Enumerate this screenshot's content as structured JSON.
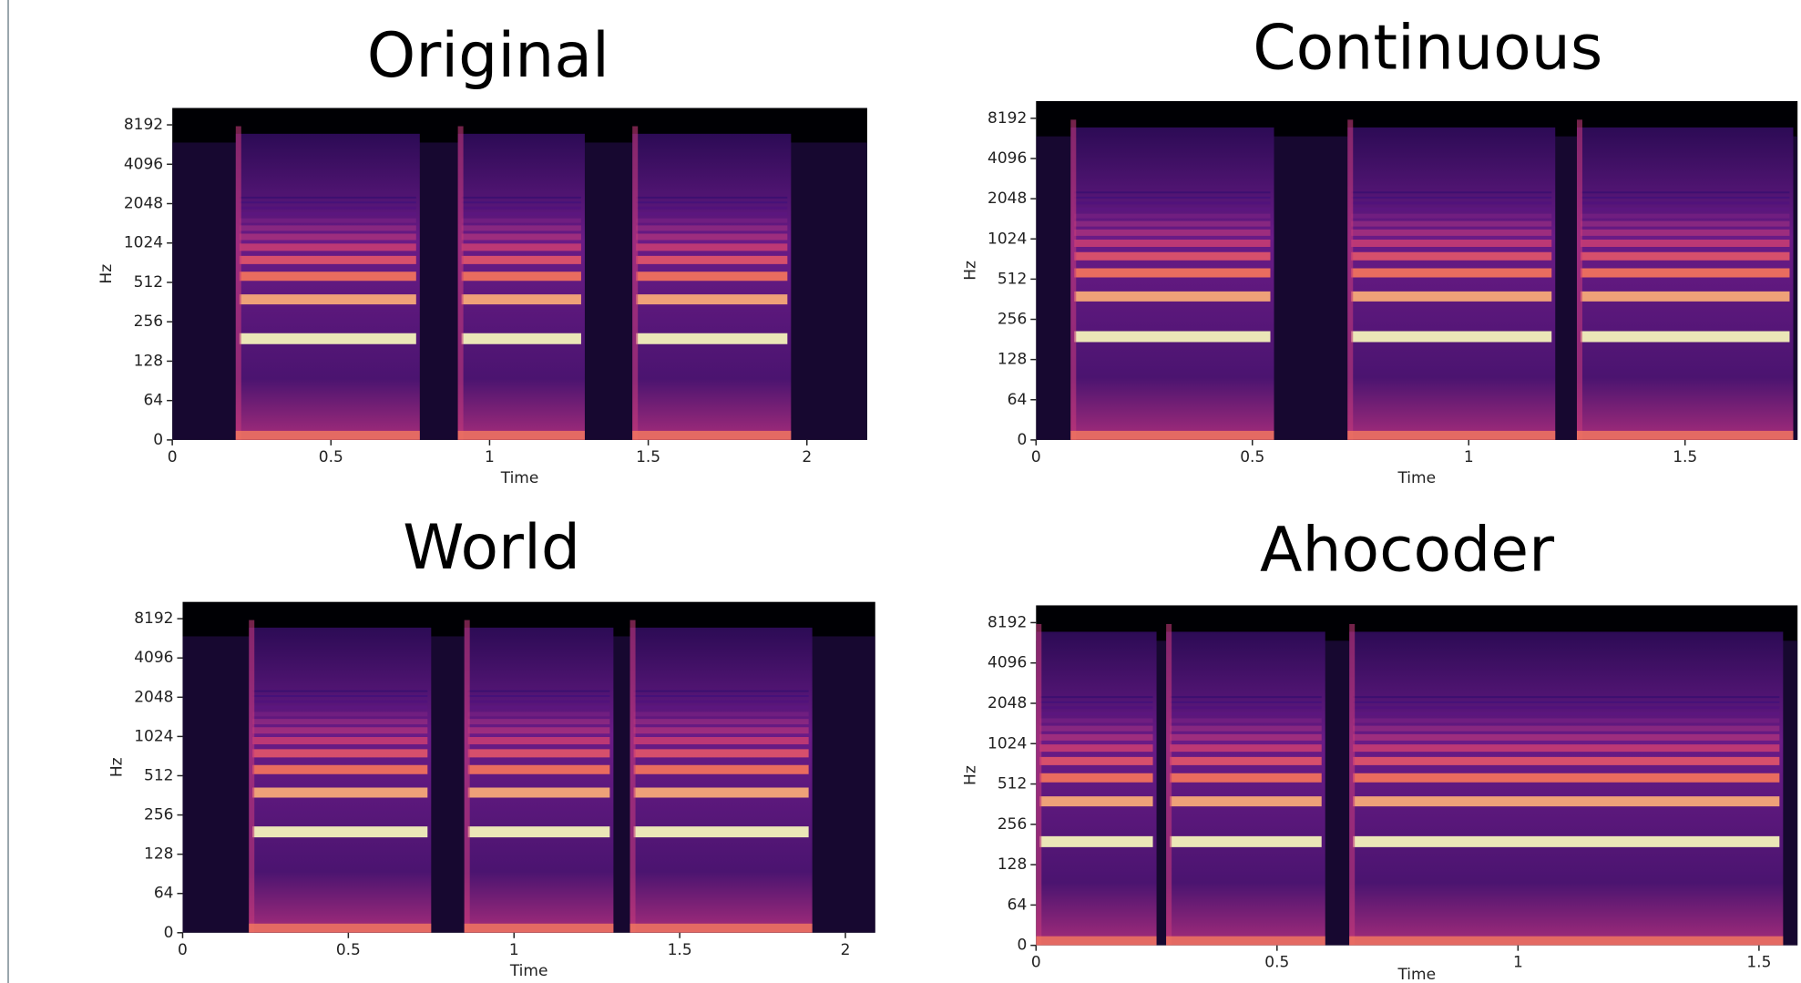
{
  "chart_data": [
    {
      "type": "spectrogram",
      "title": "Original",
      "xlabel": "Time",
      "ylabel": "Hz",
      "yscale": "symlog",
      "linthresh": 64,
      "xlim": [
        0,
        2.19
      ],
      "xticks": [
        0,
        0.5,
        1,
        1.5,
        2
      ],
      "ylim": [
        0,
        11025
      ],
      "yticks": [
        0,
        64,
        128,
        256,
        512,
        1024,
        2048,
        4096,
        8192
      ]
    },
    {
      "type": "spectrogram",
      "title": "Continuous",
      "xlabel": "Time",
      "ylabel": "Hz",
      "yscale": "symlog",
      "linthresh": 64,
      "xlim": [
        0,
        1.76
      ],
      "xticks": [
        0,
        0.5,
        1,
        1.5
      ],
      "ylim": [
        0,
        11025
      ],
      "yticks": [
        0,
        64,
        128,
        256,
        512,
        1024,
        2048,
        4096,
        8192
      ]
    },
    {
      "type": "spectrogram",
      "title": "World",
      "xlabel": "Time",
      "ylabel": "Hz",
      "yscale": "symlog",
      "linthresh": 64,
      "xlim": [
        0,
        2.09
      ],
      "xticks": [
        0,
        0.5,
        1,
        1.5,
        2
      ],
      "ylim": [
        0,
        11025
      ],
      "yticks": [
        0,
        64,
        128,
        256,
        512,
        1024,
        2048,
        4096,
        8192
      ]
    },
    {
      "type": "spectrogram",
      "title": "Ahocoder",
      "xlabel": "Time",
      "ylabel": "Hz",
      "yscale": "symlog",
      "linthresh": 64,
      "xlim": [
        0,
        1.58
      ],
      "xticks": [
        0,
        0.5,
        1,
        1.5
      ],
      "ylim": [
        0,
        11025
      ],
      "yticks": [
        0,
        64,
        128,
        256,
        512,
        1024,
        2048,
        4096,
        8192
      ]
    }
  ]
}
